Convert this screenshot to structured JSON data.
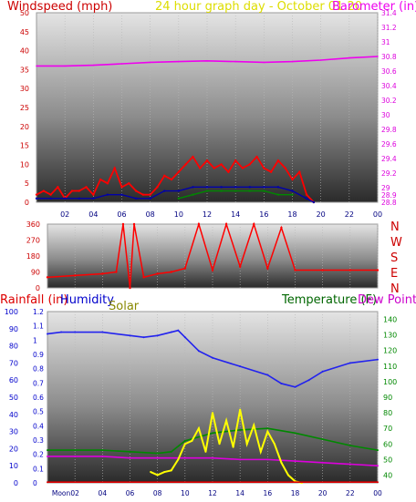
{
  "header": {
    "windspeed_label": "Windspeed (mph)",
    "title": "24 hour graph day - October 01 20",
    "barometer_label": "Barometer (in)"
  },
  "direction_labels": [
    "N",
    "W",
    "S",
    "E",
    "N"
  ],
  "bottom_header": {
    "rainfall_label": "Rainfall (in)",
    "humidity_label": "Humidity",
    "solar_label": "Solar",
    "temperature_label": "Temperature (F)",
    "dewpoint_label": "Dew Point ("
  },
  "colors": {
    "windspeed": "#cc0000",
    "title": "#dddd00",
    "barometer": "#ee00ee",
    "gust": "#ff0000",
    "wind_avg": "#0000aa",
    "wind_green": "#008800",
    "direction": "#ff0000",
    "humidity": "#2222ee",
    "solar": "#ffff00",
    "temperature": "#008800",
    "dewpoint": "#dd00dd",
    "rainfall": "#dd0000",
    "humidity_label": "#0000cc",
    "solar_label": "#888800",
    "temperature_label": "#006600",
    "dewpoint_label": "#cc00cc",
    "axis_left_top": "#cc0000",
    "axis_right_top": "#dd00dd",
    "axis_left_bottom": "#0000cc",
    "axis_right_bottom": "#008800"
  },
  "chart_data": [
    {
      "type": "line",
      "name_hint": "wind-barometer",
      "x_ticks": [
        "02",
        "04",
        "06",
        "08",
        "10",
        "12",
        "14",
        "16",
        "18",
        "20",
        "22",
        "00"
      ],
      "left_axis": {
        "label": "Windspeed (mph)",
        "ticks": [
          "0",
          "5",
          "10",
          "15",
          "20",
          "25",
          "30",
          "35",
          "40",
          "45",
          "50"
        ],
        "ylim": [
          0,
          50
        ]
      },
      "right_axis": {
        "label": "Barometer (in)",
        "ticks": [
          "28.8",
          "28.9",
          "29",
          "29.2",
          "29.4",
          "29.6",
          "29.8",
          "30",
          "30.2",
          "30.4",
          "30.6",
          "30.8",
          "31",
          "31.2",
          "31.4"
        ],
        "ylim": [
          28.8,
          31.4
        ]
      },
      "series": [
        {
          "name": "Barometer (in)",
          "color_key": "barometer",
          "x": [
            0,
            2,
            4,
            6,
            8,
            10,
            12,
            14,
            16,
            18,
            20,
            22,
            24
          ],
          "values": [
            30.67,
            30.67,
            30.68,
            30.7,
            30.72,
            30.73,
            30.74,
            30.73,
            30.72,
            30.73,
            30.75,
            30.78,
            30.8
          ]
        },
        {
          "color_key": "gust",
          "x": [
            0,
            0.5,
            1,
            1.5,
            2,
            2.5,
            3,
            3.5,
            4,
            4.5,
            5,
            5.5,
            6,
            6.5,
            7,
            7.5,
            8,
            8.5,
            9,
            9.5,
            10,
            10.5,
            11,
            11.5,
            12,
            12.5,
            13,
            13.5,
            14,
            14.5,
            15,
            15.5,
            16,
            16.5,
            17,
            17.5,
            18,
            18.5,
            19,
            19.5
          ],
          "values": [
            2,
            3,
            2,
            4,
            1,
            3,
            3,
            4,
            2,
            6,
            5,
            9,
            4,
            5,
            3,
            2,
            2,
            4,
            7,
            6,
            8,
            10,
            12,
            9,
            11,
            9,
            10,
            8,
            11,
            9,
            10,
            12,
            9,
            8,
            11,
            9,
            6,
            8,
            2,
            0
          ]
        },
        {
          "color_key": "wind_avg",
          "x": [
            0,
            1,
            2,
            3,
            4,
            5,
            6,
            7,
            8,
            9,
            10,
            11,
            12,
            13,
            14,
            15,
            16,
            17,
            18,
            19,
            19.5
          ],
          "values": [
            1,
            1,
            1,
            1,
            1,
            2,
            2,
            1,
            1,
            3,
            3,
            4,
            4,
            4,
            4,
            4,
            4,
            4,
            3,
            1,
            0
          ]
        },
        {
          "color_key": "wind_green",
          "x": [
            10,
            11,
            12,
            13,
            14,
            15,
            16,
            17,
            18
          ],
          "values": [
            1,
            2,
            3,
            3,
            3,
            3,
            3,
            2,
            2
          ]
        }
      ]
    },
    {
      "type": "scatter",
      "name_hint": "wind-direction",
      "x_ticks": [
        "02",
        "04",
        "06",
        "08",
        "10",
        "12",
        "14",
        "16",
        "18",
        "20",
        "22",
        "00"
      ],
      "left_axis": {
        "ticks": [
          "0",
          "90",
          "180",
          "270",
          "360"
        ],
        "ylim": [
          0,
          360
        ]
      },
      "series": [
        {
          "color_key": "direction",
          "x": [
            0,
            2,
            4,
            5,
            5.5,
            6,
            6.3,
            7,
            8,
            9,
            10,
            11,
            12,
            13,
            14,
            15,
            16,
            17,
            18,
            20,
            22,
            24
          ],
          "values": [
            60,
            70,
            80,
            90,
            360,
            0,
            360,
            60,
            80,
            90,
            110,
            360,
            100,
            360,
            120,
            360,
            110,
            340,
            100,
            100,
            100,
            100
          ]
        }
      ]
    },
    {
      "type": "line",
      "name_hint": "temp-humidity-solar",
      "x_ticks": [
        "Moon",
        "02",
        "04",
        "06",
        "08",
        "10",
        "12",
        "14",
        "16",
        "18",
        "20",
        "22",
        "00"
      ],
      "left_axis_rain": {
        "label": "Rainfall (in)",
        "ticks": [
          "0",
          "0.1",
          "0.2",
          "0.3",
          "0.4",
          "0.5",
          "0.6",
          "0.7",
          "0.8",
          "0.9",
          "1",
          "1.1",
          "1.2"
        ],
        "ylim": [
          0,
          1.2
        ]
      },
      "left_axis_humidity": {
        "label": "Humidity",
        "ticks": [
          "0",
          "10",
          "20",
          "30",
          "40",
          "50",
          "60",
          "70",
          "80",
          "90",
          "100"
        ],
        "ylim": [
          0,
          100
        ]
      },
      "right_axis": {
        "label": "Temperature (F)",
        "ticks": [
          "40",
          "50",
          "60",
          "70",
          "80",
          "90",
          "100",
          "110",
          "120",
          "130",
          "140"
        ],
        "ylim": [
          35,
          145
        ]
      },
      "series": [
        {
          "name": "Humidity",
          "color_key": "humidity",
          "x": [
            0,
            1,
            2,
            4,
            6,
            7,
            8,
            9,
            9.5,
            10,
            11,
            12,
            14,
            16,
            17,
            18,
            19,
            20,
            22,
            24
          ],
          "values": [
            87,
            88,
            88,
            88,
            86,
            85,
            86,
            88,
            89,
            85,
            77,
            73,
            68,
            63,
            58,
            56,
            60,
            65,
            70,
            72
          ]
        },
        {
          "name": "Temperature (F)",
          "color_key": "temperature",
          "x": [
            0,
            2,
            4,
            6,
            8,
            9,
            10,
            12,
            14,
            16,
            18,
            20,
            22,
            24
          ],
          "values": [
            56,
            56,
            56,
            55,
            54,
            55,
            62,
            67,
            69,
            70,
            67,
            63,
            59,
            56
          ]
        },
        {
          "name": "Dew Point (",
          "color_key": "dewpoint",
          "x": [
            0,
            2,
            4,
            6,
            8,
            10,
            12,
            14,
            16,
            18,
            20,
            22,
            24
          ],
          "values": [
            52,
            52,
            52,
            51,
            51,
            51,
            51,
            50,
            50,
            49,
            48,
            47,
            46
          ]
        },
        {
          "name": "Solar",
          "color_key": "solar",
          "x": [
            7.5,
            8,
            8.5,
            9,
            9.5,
            10,
            10.5,
            11,
            11.5,
            12,
            12.5,
            13,
            13.5,
            14,
            14.5,
            15,
            15.5,
            16,
            16.5,
            17,
            17.5,
            18,
            18.5
          ],
          "values": [
            42,
            40,
            42,
            43,
            50,
            60,
            62,
            70,
            55,
            80,
            60,
            75,
            58,
            82,
            60,
            72,
            55,
            68,
            60,
            48,
            40,
            36,
            35
          ]
        },
        {
          "name": "Rainfall (in)",
          "color_key": "rainfall",
          "x": [
            0,
            24
          ],
          "values": [
            0.005,
            0.005
          ]
        }
      ]
    }
  ]
}
